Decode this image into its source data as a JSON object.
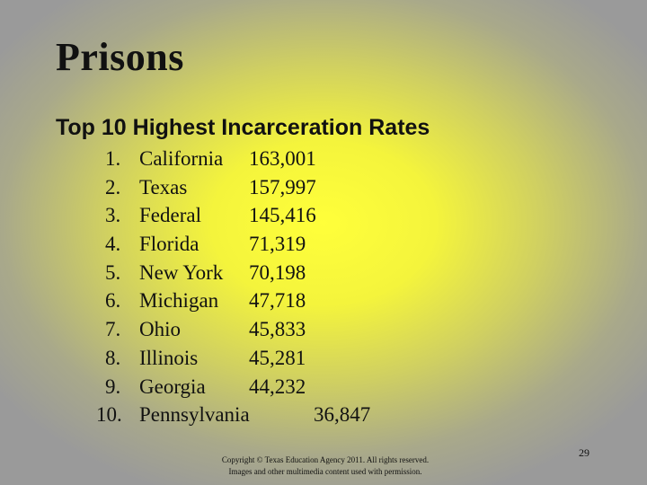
{
  "slide": {
    "title": "Prisons",
    "subtitle": "Top 10 Highest Incarceration Rates",
    "items": [
      {
        "num": "1.",
        "name": "California",
        "value": "163,001"
      },
      {
        "num": "2.",
        "name": "Texas",
        "value": "157,997"
      },
      {
        "num": "3.",
        "name": "Federal",
        "value": "145,416"
      },
      {
        "num": "4.",
        "name": "Florida",
        "value": "71,319"
      },
      {
        "num": "5.",
        "name": "New York",
        "value": "70,198"
      },
      {
        "num": "6.",
        "name": "Michigan",
        "value": "47,718"
      },
      {
        "num": "7.",
        "name": "Ohio",
        "value": "45,833"
      },
      {
        "num": "8.",
        "name": "Illinois",
        "value": "45,281"
      },
      {
        "num": "9.",
        "name": "Georgia",
        "value": "44,232"
      },
      {
        "num": "10.",
        "name": "Pennsylvania",
        "value": "36,847"
      }
    ],
    "copyright_line1": "Copyright © Texas Education Agency 2011. All rights reserved.",
    "copyright_line2": "Images and other multimedia content used with permission.",
    "page_number": "29"
  }
}
